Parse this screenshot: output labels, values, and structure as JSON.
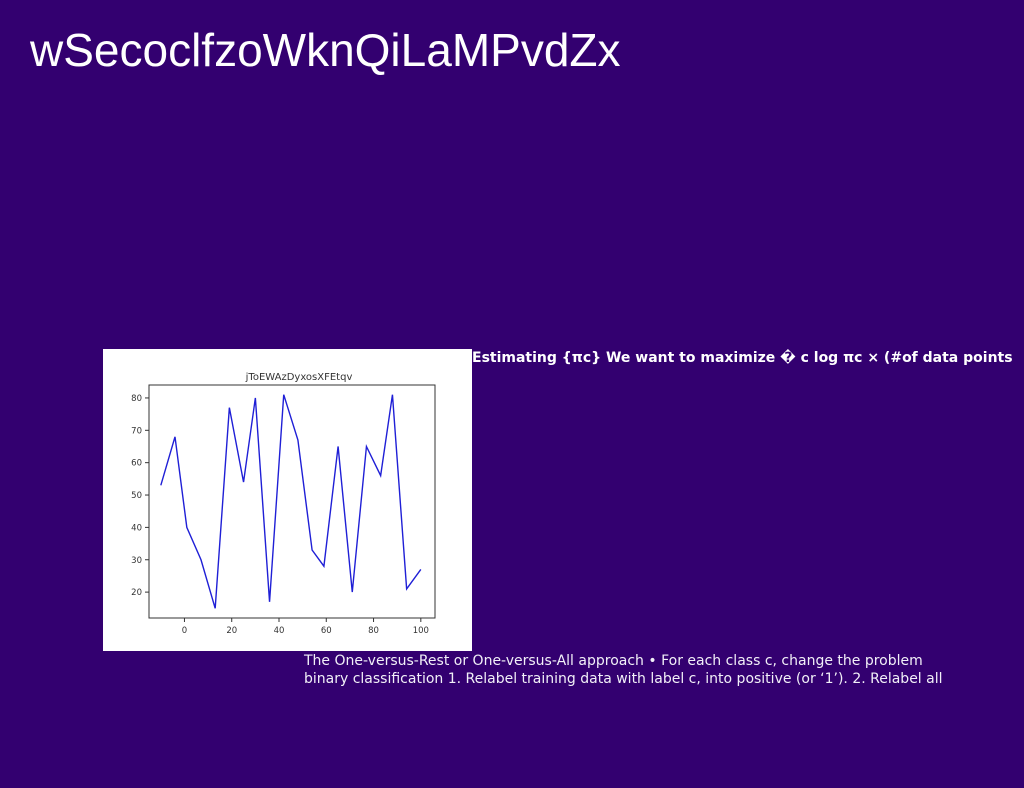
{
  "page": {
    "title": "wSecoclfzoWknQiLaMPvdZx",
    "background_color": "#330070",
    "text_color": "#ffffff"
  },
  "text_blocks": {
    "heading": "Estimating {πc} We want to maximize � c log πc × (#of data points",
    "body": "The One-versus-Rest or One-versus-All approach • For each class c, change the problem\nbinary classification 1. Relabel training data with label c, into positive (or ‘1’). 2. Relabel all"
  },
  "chart_data": {
    "type": "line",
    "title": "jToEWAzDyxosXFEtqv",
    "xlabel": "",
    "ylabel": "",
    "x": [
      -10,
      -4,
      1,
      7,
      13,
      19,
      25,
      30,
      36,
      42,
      48,
      54,
      59,
      65,
      71,
      77,
      83,
      88,
      94,
      100
    ],
    "series": [
      {
        "values": [
          53,
          68,
          40,
          30,
          15,
          77,
          54,
          80,
          17,
          81,
          67,
          33,
          28,
          65,
          20,
          65,
          56,
          81,
          21,
          27
        ],
        "color": "#1f1fd6"
      }
    ],
    "xlim": [
      -15,
      106
    ],
    "ylim": [
      12,
      84
    ],
    "xticks": [
      0,
      20,
      40,
      60,
      80,
      100
    ],
    "yticks": [
      20,
      30,
      40,
      50,
      60,
      70,
      80
    ],
    "xtick_labels": [
      "0",
      "20",
      "40",
      "60",
      "80",
      "100"
    ],
    "ytick_labels": [
      "20",
      "30",
      "40",
      "50",
      "60",
      "70",
      "80"
    ],
    "grid": false,
    "legend": "none"
  }
}
